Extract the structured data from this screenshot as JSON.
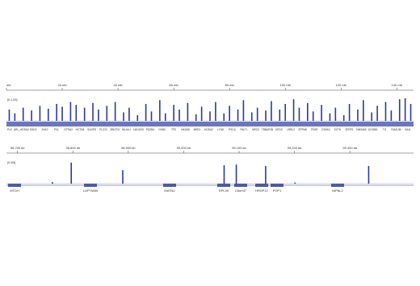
{
  "panels": [
    {
      "ruler": {
        "unit_ticks": [
          {
            "value": 0,
            "label": "mb"
          },
          {
            "value": 20,
            "label": "20 mb"
          },
          {
            "value": 40,
            "label": "40 mb"
          },
          {
            "value": 60,
            "label": "60 mb"
          },
          {
            "value": 80,
            "label": "80 mb"
          },
          {
            "value": 100,
            "label": "100 mb"
          },
          {
            "value": 120,
            "label": "120 mb"
          },
          {
            "value": 140,
            "label": "140 mb"
          }
        ],
        "xlim": [
          0,
          146
        ]
      },
      "range_label": "[0-120]",
      "ylim": [
        0,
        120
      ],
      "color": "#2b3a9a",
      "positions": [
        1,
        3,
        6,
        9,
        12,
        15,
        18,
        20,
        23,
        25,
        28,
        31,
        33,
        36,
        39,
        42,
        44,
        47,
        50,
        52,
        55,
        57,
        60,
        62,
        65,
        68,
        70,
        73,
        75,
        78,
        80,
        83,
        85,
        88,
        90,
        93,
        95,
        98,
        100,
        103,
        105,
        108,
        110,
        113,
        116,
        118,
        121,
        123,
        126,
        128,
        131,
        133,
        136,
        138,
        141,
        143,
        145
      ],
      "values": [
        60,
        40,
        70,
        55,
        80,
        65,
        90,
        75,
        100,
        85,
        70,
        95,
        60,
        80,
        100,
        45,
        70,
        30,
        90,
        50,
        110,
        40,
        85,
        60,
        95,
        35,
        75,
        50,
        100,
        40,
        80,
        60,
        110,
        45,
        70,
        55,
        105,
        60,
        90,
        115,
        70,
        95,
        50,
        85,
        40,
        70,
        30,
        90,
        60,
        110,
        45,
        80,
        100,
        55,
        115,
        120,
        90
      ],
      "genes": [
        "PLK",
        "ARL_HDSAX",
        "SGK3",
        "ZNK2",
        "PXL",
        "GTRA3",
        "HCTD8",
        "SUGP8",
        "PLZ13",
        "ZBKTD1",
        "WLHA L",
        "LMO4SO",
        "PDZB4",
        "GKB5",
        "TFE",
        "NKAS8",
        "MRE1",
        "NCEA2",
        "LYN8",
        "PSCA",
        "PALTL",
        "NRG3",
        "TBBAP2B",
        "KFDS",
        "LRRL2",
        "ZFPM8",
        "TRHR",
        "CSMD1",
        "EXTH",
        "SFRP1",
        "TMEM65",
        "DOGB8",
        "TG",
        "FAM13B",
        "BAI1"
      ]
    },
    {
      "ruler": {
        "unit_ticks": [
          {
            "value": 98700,
            "label": "98,700 kb"
          },
          {
            "value": 98800,
            "label": "98,800 kb"
          },
          {
            "value": 98900,
            "label": "98,900 kb"
          },
          {
            "value": 99000,
            "label": "99,000 kb"
          },
          {
            "value": 99100,
            "label": "99,100 kb"
          },
          {
            "value": 99200,
            "label": "99,200 kb"
          },
          {
            "value": 99300,
            "label": "99,300 kb"
          }
        ],
        "xlim": [
          98680,
          99415
        ]
      },
      "range_label": "[0-60]",
      "ylim": [
        0,
        60
      ],
      "color": "#2b3a9a",
      "positions": [
        98763,
        98797,
        98890,
        99073,
        99095,
        99148,
        99201,
        99334
      ],
      "values": [
        4,
        56,
        36,
        49,
        51,
        47,
        3,
        47
      ],
      "genes": [
        "MTDH",
        "LAPTM4B",
        "MATN2",
        "RPL30",
        "C8orf47",
        "HRSP12",
        "POP1",
        "NIPAL2"
      ]
    }
  ]
}
